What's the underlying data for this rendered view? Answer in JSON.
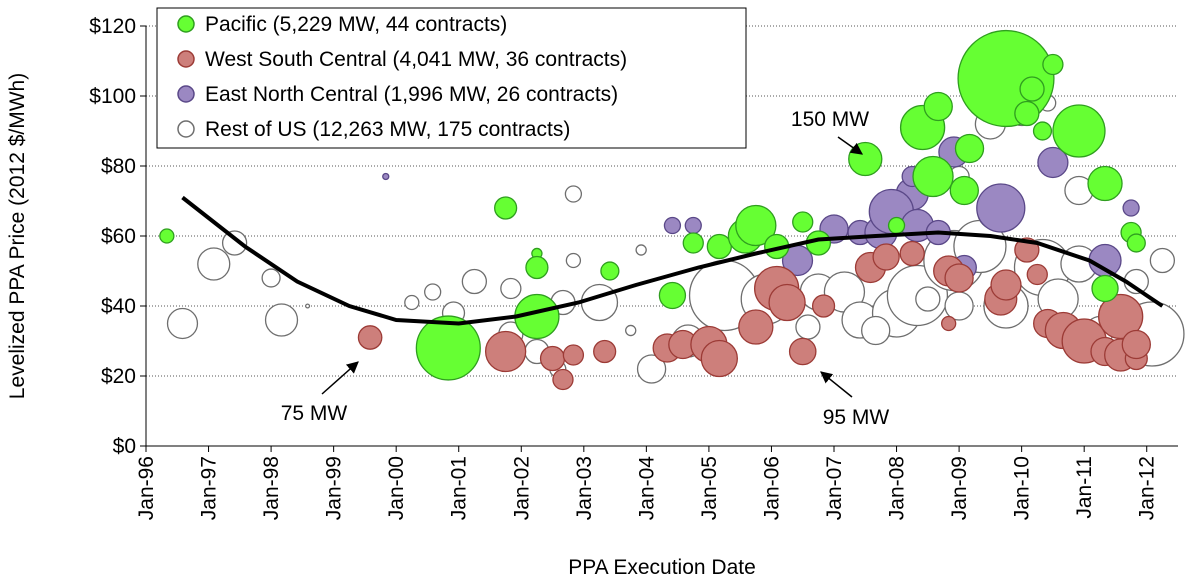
{
  "chart_data": {
    "type": "bubble",
    "xlabel": "PPA Execution Date",
    "ylabel": "Levelized PPA Price (2012 $/MWh)",
    "xlim": [
      "1996-01",
      "2012-07"
    ],
    "ylim": [
      0,
      120
    ],
    "xticks": [
      {
        "value": "1996-01",
        "label": "Jan-96"
      },
      {
        "value": "1997-01",
        "label": "Jan-97"
      },
      {
        "value": "1998-01",
        "label": "Jan-98"
      },
      {
        "value": "1999-01",
        "label": "Jan-99"
      },
      {
        "value": "2000-01",
        "label": "Jan-00"
      },
      {
        "value": "2001-01",
        "label": "Jan-01"
      },
      {
        "value": "2002-01",
        "label": "Jan-02"
      },
      {
        "value": "2003-01",
        "label": "Jan-03"
      },
      {
        "value": "2004-01",
        "label": "Jan-04"
      },
      {
        "value": "2005-01",
        "label": "Jan-05"
      },
      {
        "value": "2006-01",
        "label": "Jan-06"
      },
      {
        "value": "2007-01",
        "label": "Jan-07"
      },
      {
        "value": "2008-01",
        "label": "Jan-08"
      },
      {
        "value": "2009-01",
        "label": "Jan-09"
      },
      {
        "value": "2010-01",
        "label": "Jan-10"
      },
      {
        "value": "2011-01",
        "label": "Jan-11"
      },
      {
        "value": "2012-01",
        "label": "Jan-12"
      }
    ],
    "yticks": [
      {
        "value": 0,
        "label": "$0"
      },
      {
        "value": 20,
        "label": "$20"
      },
      {
        "value": 40,
        "label": "$40"
      },
      {
        "value": 60,
        "label": "$60"
      },
      {
        "value": 80,
        "label": "$80"
      },
      {
        "value": 100,
        "label": "$100"
      },
      {
        "value": 120,
        "label": "$120"
      }
    ],
    "grid": true,
    "legend": "upper left",
    "series": [
      {
        "name": "Pacific (5,229 MW, 44 contracts)",
        "color": "#66ff33",
        "edgecolor": "#2f9e1f",
        "x": [
          "1996-05",
          "2000-11",
          "2001-10",
          "2002-04",
          "2002-04",
          "2002-04",
          "2003-06",
          "2004-06",
          "2004-10",
          "2005-03",
          "2005-08",
          "2005-10",
          "2006-02",
          "2006-07",
          "2006-10",
          "2007-07",
          "2008-06",
          "2008-09",
          "2008-08",
          "2009-02",
          "2009-03",
          "2009-10",
          "2010-03",
          "2010-02",
          "2010-05",
          "2010-07",
          "2010-12",
          "2011-05",
          "2011-05",
          "2011-10",
          "2011-11",
          "2008-01"
        ],
        "values": [
          60,
          28,
          68,
          55,
          51,
          37,
          50,
          43,
          58,
          57,
          60,
          63,
          57,
          64,
          58,
          82,
          91,
          97,
          77,
          73,
          85,
          105,
          102,
          95,
          90,
          109,
          90,
          75,
          45,
          61,
          58,
          63
        ],
        "sizes": [
          27,
          560,
          66,
          14,
          66,
          266,
          44,
          93,
          55,
          79,
          159,
          220,
          79,
          55,
          79,
          150,
          266,
          108,
          220,
          108,
          108,
          1260,
          79,
          79,
          44,
          55,
          371,
          159,
          93,
          55,
          44,
          35
        ]
      },
      {
        "name": "West South Central (4,041 MW, 36 contracts)",
        "color": "#cd7f7b",
        "edgecolor": "#9c3b36",
        "x": [
          "1999-08",
          "2000-10",
          "2001-10",
          "2002-07",
          "2002-09",
          "2002-11",
          "2003-05",
          "2004-05",
          "2004-08",
          "2005-01",
          "2005-03",
          "2005-10",
          "2006-02",
          "2006-04",
          "2006-07",
          "2006-11",
          "2007-08",
          "2007-11",
          "2008-04",
          "2008-11",
          "2009-01",
          "2008-11",
          "2009-09",
          "2009-10",
          "2010-02",
          "2010-04",
          "2010-06",
          "2010-09",
          "2011-01",
          "2011-05",
          "2011-08",
          "2011-08",
          "2011-11",
          "2011-11"
        ],
        "values": [
          31,
          30,
          27,
          25,
          19,
          26,
          27,
          28,
          29,
          29,
          25,
          34,
          45,
          41,
          27,
          40,
          51,
          54,
          55,
          50,
          48,
          35,
          42,
          46,
          56,
          49,
          35,
          33,
          30,
          27,
          37,
          26,
          25,
          29
        ],
        "sizes": [
          75,
          178,
          220,
          79,
          55,
          55,
          66,
          108,
          108,
          178,
          178,
          159,
          266,
          178,
          95,
          66,
          123,
          93,
          79,
          123,
          108,
          27,
          140,
          123,
          79,
          55,
          108,
          178,
          266,
          108,
          266,
          140,
          66,
          108
        ]
      },
      {
        "name": "East North Central (1,996 MW, 26 contracts)",
        "color": "#9b88c2",
        "edgecolor": "#5a4888",
        "x": [
          "1999-11",
          "2004-06",
          "2004-10",
          "2006-06",
          "2007-01",
          "2007-06",
          "2007-10",
          "2008-04",
          "2007-12",
          "2008-05",
          "2008-09",
          "2008-12",
          "2009-09",
          "2010-07",
          "2011-05",
          "2011-10",
          "2009-02",
          "2008-04"
        ],
        "values": [
          77,
          63,
          63,
          53,
          62,
          61,
          61,
          72,
          67,
          63,
          61,
          84,
          68,
          81,
          53,
          68,
          51,
          77
        ],
        "sizes": [
          5,
          35,
          35,
          123,
          108,
          79,
          140,
          140,
          266,
          140,
          79,
          123,
          316,
          123,
          140,
          35,
          79,
          55
        ]
      },
      {
        "name": "Rest of US (12,263 MW, 175 contracts)",
        "color": "#ffffff",
        "edgecolor": "#6e6e6e",
        "x": [
          "1996-08",
          "1997-02",
          "1997-06",
          "1998-01",
          "1998-03",
          "1998-08",
          "2000-04",
          "2000-08",
          "2000-12",
          "2001-04",
          "2001-11",
          "2001-11",
          "2002-04",
          "2002-11",
          "2002-11",
          "2003-04",
          "2002-09",
          "2002-08",
          "2003-10",
          "2003-12",
          "2004-02",
          "2004-09",
          "2005-04",
          "2005-12",
          "2006-10",
          "2006-08",
          "2007-03",
          "2007-06",
          "2008-01",
          "2008-05",
          "2008-07",
          "2008-12",
          "2009-05",
          "2009-07",
          "2010-01",
          "2009-10",
          "2010-05",
          "2010-08",
          "2010-12",
          "2010-12",
          "2011-04",
          "2011-11",
          "2012-02",
          "2012-04",
          "2009-01",
          "2010-06",
          "2009-08",
          "2009-01",
          "2007-09"
        ],
        "values": [
          35,
          52,
          58,
          48,
          36,
          40,
          41,
          44,
          38,
          47,
          45,
          32,
          27,
          72,
          53,
          41,
          41,
          22,
          33,
          56,
          22,
          30,
          43,
          42,
          44,
          34,
          44,
          36,
          38,
          43,
          42,
          53,
          57,
          92,
          95,
          40,
          51,
          42,
          73,
          52,
          33,
          47,
          32,
          53,
          77,
          98,
          67,
          40,
          33
        ],
        "sizes": [
          123,
          140,
          79,
          44,
          140,
          2,
          27,
          35,
          66,
          79,
          55,
          79,
          79,
          35,
          27,
          178,
          79,
          35,
          14,
          14,
          108,
          140,
          672,
          343,
          178,
          79,
          220,
          178,
          316,
          494,
          79,
          494,
          371,
          123,
          79,
          266,
          430,
          220,
          108,
          178,
          108,
          79,
          562,
          79,
          55,
          35,
          178,
          108,
          108
        ]
      }
    ],
    "trend": {
      "x": [
        "1996-08",
        "1997-08",
        "1998-06",
        "1999-04",
        "2000-01",
        "2001-01",
        "2001-12",
        "2002-12",
        "2003-11",
        "2004-11",
        "2005-10",
        "2006-10",
        "2007-09",
        "2008-09",
        "2009-07",
        "2010-04",
        "2011-02",
        "2011-09",
        "2012-04"
      ],
      "values": [
        71,
        57,
        47,
        40,
        36,
        35,
        37,
        41,
        46,
        51,
        55,
        59,
        60,
        61,
        60,
        58,
        53,
        47,
        40
      ],
      "color": "#000000"
    },
    "annotations": [
      "150 MW",
      "75 MW",
      "95 MW"
    ]
  }
}
